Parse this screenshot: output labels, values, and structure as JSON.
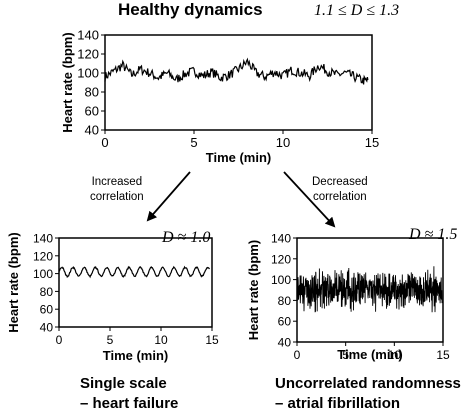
{
  "title": "Healthy dynamics",
  "top_dimension": "1.1 ≤ D ≤ 1.3",
  "arrow_left": {
    "line1": "Increased",
    "line2": "correlation"
  },
  "arrow_right": {
    "line1": "Decreased",
    "line2": "correlation"
  },
  "left_dimension": "D ≈ 1.0",
  "right_dimension": "D ≈ 1.5",
  "left_caption": {
    "line1": "Single scale",
    "line2": "– heart failure"
  },
  "right_caption": {
    "line1": "Uncorrelated randomness",
    "line2": "– atrial fibrillation"
  },
  "chart_data": [
    {
      "type": "line",
      "name": "healthy",
      "xlabel": "Time (min)",
      "ylabel": "Heart rate (bpm)",
      "xlim": [
        0,
        15
      ],
      "ylim": [
        40,
        140
      ],
      "xticks": [
        0,
        5,
        10,
        15
      ],
      "yticks": [
        40,
        60,
        80,
        100,
        120,
        140
      ],
      "grid": false,
      "pattern": "irregular fluctuations around 100 bpm",
      "x": [
        0,
        0.5,
        1,
        1.5,
        2,
        2.5,
        3,
        3.5,
        4,
        4.5,
        5,
        5.5,
        6,
        6.5,
        7,
        7.5,
        8,
        8.5,
        9,
        9.5,
        10,
        10.5,
        11,
        11.5,
        12,
        12.5,
        13,
        13.5,
        14,
        14.5
      ],
      "y": [
        96,
        102,
        108,
        98,
        104,
        100,
        95,
        100,
        93,
        99,
        102,
        97,
        101,
        95,
        98,
        104,
        112,
        100,
        96,
        101,
        97,
        103,
        100,
        97,
        108,
        102,
        98,
        100,
        96,
        92
      ]
    },
    {
      "type": "line",
      "name": "heart-failure",
      "xlabel": "Time (min)",
      "ylabel": "Heart rate (bpm)",
      "xlim": [
        0,
        15
      ],
      "ylim": [
        40,
        140
      ],
      "xticks": [
        0,
        5,
        10,
        15
      ],
      "yticks": [
        40,
        60,
        80,
        100,
        120,
        140
      ],
      "grid": false,
      "pattern": "smooth periodic oscillation around 100 bpm",
      "baseline": 102,
      "amplitude": 5,
      "period_min": 1.1
    },
    {
      "type": "line",
      "name": "atrial-fibrillation",
      "xlabel": "Time (min)",
      "ylabel": "Heart rate (bpm)",
      "xlim": [
        0,
        15
      ],
      "ylim": [
        40,
        140
      ],
      "xticks": [
        0,
        5,
        10,
        15
      ],
      "yticks": [
        40,
        60,
        80,
        100,
        120,
        140
      ],
      "grid": false,
      "pattern": "dense uncorrelated noise between about 65 and 115 bpm",
      "baseline": 90,
      "range": [
        65,
        115
      ]
    }
  ]
}
